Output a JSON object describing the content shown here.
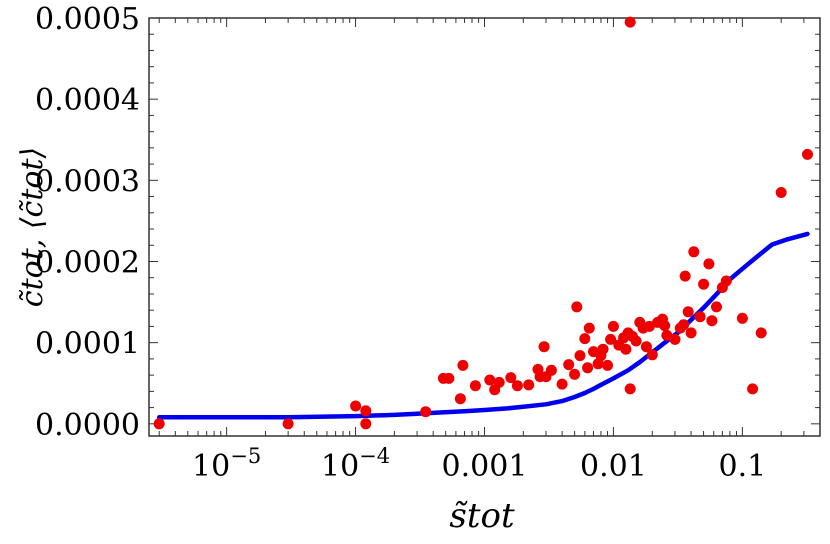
{
  "chart_data": {
    "type": "scatter",
    "title": "",
    "xlabel": "s̃tot",
    "ylabel": "c̃tot, ⟨c̃tot⟩",
    "x_scale": "log",
    "xlim": [
      2.5e-06,
      0.4
    ],
    "ylim": [
      -1.5e-05,
      0.0005
    ],
    "grid": false,
    "legend": "none",
    "x_ticks": [
      {
        "value": 1e-05,
        "label": "10",
        "exp": "−5"
      },
      {
        "value": 0.0001,
        "label": "10",
        "exp": "−4"
      },
      {
        "value": 0.001,
        "label": "0.001",
        "exp": ""
      },
      {
        "value": 0.01,
        "label": "0.01",
        "exp": ""
      },
      {
        "value": 0.1,
        "label": "0.1",
        "exp": ""
      }
    ],
    "y_ticks": [
      {
        "value": 0.0,
        "label": "0.0000"
      },
      {
        "value": 0.0001,
        "label": "0.0001"
      },
      {
        "value": 0.0002,
        "label": "0.0002"
      },
      {
        "value": 0.0003,
        "label": "0.0003"
      },
      {
        "value": 0.0004,
        "label": "0.0004"
      },
      {
        "value": 0.0005,
        "label": "0.0005"
      }
    ],
    "scatter": {
      "color": "#ee0000",
      "points": [
        [
          3e-06,
          0.0
        ],
        [
          3e-05,
          0.0
        ],
        [
          0.0001,
          2.2e-05
        ],
        [
          0.00012,
          1.6e-05
        ],
        [
          0.00012,
          0.0
        ],
        [
          0.00035,
          1.5e-05
        ],
        [
          0.00048,
          5.6e-05
        ],
        [
          0.00053,
          5.6e-05
        ],
        [
          0.00065,
          3.1e-05
        ],
        [
          0.00068,
          7.2e-05
        ],
        [
          0.00085,
          4.7e-05
        ],
        [
          0.0011,
          5.4e-05
        ],
        [
          0.0012,
          4.2e-05
        ],
        [
          0.0013,
          5.1e-05
        ],
        [
          0.0016,
          5.7e-05
        ],
        [
          0.0018,
          4.7e-05
        ],
        [
          0.0022,
          4.8e-05
        ],
        [
          0.0026,
          6.7e-05
        ],
        [
          0.0027,
          5.8e-05
        ],
        [
          0.0029,
          9.5e-05
        ],
        [
          0.003,
          5.8e-05
        ],
        [
          0.0033,
          6.6e-05
        ],
        [
          0.004,
          4.9e-05
        ],
        [
          0.0045,
          7.3e-05
        ],
        [
          0.005,
          6.1e-05
        ],
        [
          0.0052,
          0.000144
        ],
        [
          0.0055,
          8.4e-05
        ],
        [
          0.006,
          0.000105
        ],
        [
          0.0063,
          6.9e-05
        ],
        [
          0.0065,
          0.000118
        ],
        [
          0.007,
          8.9e-05
        ],
        [
          0.0076,
          7.4e-05
        ],
        [
          0.008,
          8.4e-05
        ],
        [
          0.0083,
          9.2e-05
        ],
        [
          0.009,
          7.2e-05
        ],
        [
          0.0095,
          0.000104
        ],
        [
          0.01,
          0.00012
        ],
        [
          0.011,
          9.7e-05
        ],
        [
          0.012,
          0.000106
        ],
        [
          0.0125,
          9.2e-05
        ],
        [
          0.013,
          0.000112
        ],
        [
          0.0135,
          4.3e-05
        ],
        [
          0.014,
          0.000108
        ],
        [
          0.015,
          0.000102
        ],
        [
          0.016,
          0.000125
        ],
        [
          0.017,
          0.000118
        ],
        [
          0.018,
          9.5e-05
        ],
        [
          0.019,
          0.00012
        ],
        [
          0.02,
          8.5e-05
        ],
        [
          0.022,
          0.000125
        ],
        [
          0.024,
          0.000129
        ],
        [
          0.025,
          0.000121
        ],
        [
          0.026,
          0.000109
        ],
        [
          0.03,
          0.000104
        ],
        [
          0.033,
          0.000118
        ],
        [
          0.035,
          0.000122
        ],
        [
          0.036,
          0.000182
        ],
        [
          0.038,
          0.000138
        ],
        [
          0.04,
          0.000112
        ],
        [
          0.042,
          0.000212
        ],
        [
          0.047,
          0.000132
        ],
        [
          0.05,
          0.000172
        ],
        [
          0.055,
          0.000197
        ],
        [
          0.058,
          0.000127
        ],
        [
          0.063,
          0.000144
        ],
        [
          0.07,
          0.000168
        ],
        [
          0.075,
          0.000176
        ],
        [
          0.1,
          0.00013
        ],
        [
          0.12,
          4.3e-05
        ],
        [
          0.14,
          0.000112
        ],
        [
          0.2,
          0.000285
        ],
        [
          0.32,
          0.000332
        ],
        [
          0.0135,
          0.000495
        ]
      ]
    },
    "curve": {
      "color": "#0000ee",
      "points": [
        [
          3e-06,
          8e-06
        ],
        [
          1e-05,
          8e-06
        ],
        [
          3e-05,
          8e-06
        ],
        [
          0.0001,
          9.5e-06
        ],
        [
          0.0002,
          1.1e-05
        ],
        [
          0.0003,
          1.25e-05
        ],
        [
          0.00045,
          1.4e-05
        ],
        [
          0.0007,
          1.55e-05
        ],
        [
          0.001,
          1.7e-05
        ],
        [
          0.0015,
          1.9e-05
        ],
        [
          0.002,
          2.1e-05
        ],
        [
          0.003,
          2.4e-05
        ],
        [
          0.004,
          2.8e-05
        ],
        [
          0.005,
          3.3e-05
        ],
        [
          0.006,
          3.8e-05
        ],
        [
          0.007,
          4.3e-05
        ],
        [
          0.008,
          4.8e-05
        ],
        [
          0.01,
          5.6e-05
        ],
        [
          0.013,
          6.6e-05
        ],
        [
          0.016,
          7.6e-05
        ],
        [
          0.02,
          8.8e-05
        ],
        [
          0.025,
          0.0001
        ],
        [
          0.032,
          0.000113
        ],
        [
          0.04,
          0.000128
        ],
        [
          0.05,
          0.000143
        ],
        [
          0.065,
          0.000162
        ],
        [
          0.08,
          0.000178
        ],
        [
          0.1,
          0.000191
        ],
        [
          0.13,
          0.000206
        ],
        [
          0.17,
          0.000221
        ],
        [
          0.22,
          0.000227
        ],
        [
          0.32,
          0.000234
        ]
      ]
    }
  }
}
